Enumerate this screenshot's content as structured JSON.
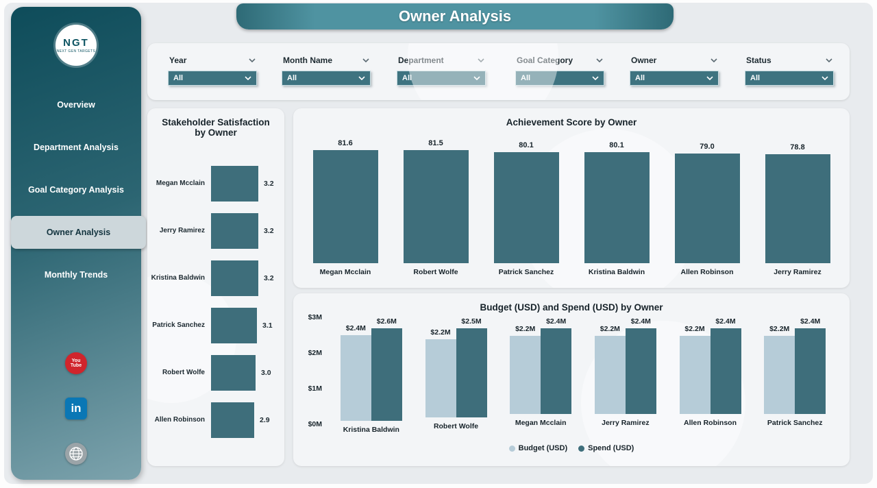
{
  "header": {
    "title": "Owner Analysis"
  },
  "sidebar": {
    "logo": {
      "text": "NGT",
      "subtext": "NEXT GEN TARGETS"
    },
    "items": [
      {
        "label": "Overview",
        "active": false
      },
      {
        "label": "Department Analysis",
        "active": false
      },
      {
        "label": "Goal Category Analysis",
        "active": false
      },
      {
        "label": "Owner Analysis",
        "active": true
      },
      {
        "label": "Monthly Trends",
        "active": false
      }
    ],
    "social": [
      {
        "name": "youtube",
        "line1": "You",
        "line2": "Tube"
      },
      {
        "name": "linkedin",
        "glyph": "in"
      },
      {
        "name": "website"
      }
    ]
  },
  "filters": [
    {
      "label": "Year",
      "value": "All"
    },
    {
      "label": "Month Name",
      "value": "All"
    },
    {
      "label": "Department",
      "value": "All"
    },
    {
      "label": "Goal Category",
      "value": "All"
    },
    {
      "label": "Owner",
      "value": "All"
    },
    {
      "label": "Status",
      "value": "All"
    }
  ],
  "chart_data": [
    {
      "type": "bar",
      "orientation": "horizontal",
      "title": "Stakeholder Satisfaction by Owner",
      "categories": [
        "Megan Mcclain",
        "Jerry Ramirez",
        "Kristina Baldwin",
        "Patrick Sanchez",
        "Robert Wolfe",
        "Allen Robinson"
      ],
      "values": [
        3.2,
        3.2,
        3.2,
        3.1,
        3.0,
        2.9
      ],
      "xlim": [
        0,
        3.5
      ],
      "grid": false
    },
    {
      "type": "bar",
      "orientation": "vertical",
      "title": "Achievement Score by Owner",
      "categories": [
        "Megan Mcclain",
        "Robert Wolfe",
        "Patrick Sanchez",
        "Kristina Baldwin",
        "Allen Robinson",
        "Jerry Ramirez"
      ],
      "values": [
        81.6,
        81.5,
        80.1,
        80.1,
        79.0,
        78.8
      ],
      "ylim": [
        0,
        85
      ],
      "grid": false
    },
    {
      "type": "bar",
      "orientation": "vertical",
      "grouped": true,
      "title": "Budget (USD) and Spend (USD) by Owner",
      "categories": [
        "Kristina Baldwin",
        "Robert Wolfe",
        "Megan Mcclain",
        "Jerry Ramirez",
        "Allen Robinson",
        "Patrick Sanchez"
      ],
      "series": [
        {
          "name": "Budget (USD)",
          "values": [
            2.4,
            2.2,
            2.2,
            2.2,
            2.2,
            2.2
          ],
          "labels": [
            "$2.4M",
            "$2.2M",
            "$2.2M",
            "$2.2M",
            "$2.2M",
            "$2.2M"
          ]
        },
        {
          "name": "Spend (USD)",
          "values": [
            2.6,
            2.5,
            2.4,
            2.4,
            2.4,
            2.4
          ],
          "labels": [
            "$2.6M",
            "$2.5M",
            "$2.4M",
            "$2.4M",
            "$2.4M",
            "$2.4M"
          ]
        }
      ],
      "y_ticks": [
        {
          "label": "$3M",
          "value": 3
        },
        {
          "label": "$2M",
          "value": 2
        },
        {
          "label": "$1M",
          "value": 1
        },
        {
          "label": "$0M",
          "value": 0
        }
      ],
      "ylim": [
        0,
        3
      ],
      "legend_position": "bottom",
      "grid": false
    }
  ],
  "colors": {
    "accent": "#3e6e7b",
    "accent_light": "#b6ccd8",
    "sidebar_top": "#0e4c5a",
    "sidebar_bottom": "#7da3ad",
    "nav_active_bg": "#cdd7db",
    "panel_bg": "#f3f5f7",
    "page_bg": "#e8ebee",
    "dropdown_bg": "#3e7380",
    "banner_teal": "#4f93a1",
    "text_dark": "#17232a",
    "youtube_red": "#d0252c",
    "linkedin_blue": "#0a77b5"
  }
}
